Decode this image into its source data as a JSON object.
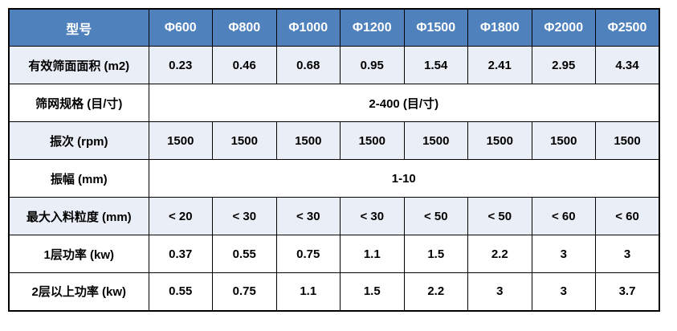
{
  "table": {
    "header": {
      "corner_label": "型号",
      "models": [
        "Φ600",
        "Φ800",
        "Φ1000",
        "Φ1200",
        "Φ1500",
        "Φ1800",
        "Φ2000",
        "Φ2500"
      ]
    },
    "rows": [
      {
        "label": "有效筛面面积 (m2)",
        "type": "values",
        "shaded": true,
        "values": [
          "0.23",
          "0.46",
          "0.68",
          "0.95",
          "1.54",
          "2.41",
          "2.95",
          "4.34"
        ]
      },
      {
        "label": "筛网规格 (目/寸)",
        "type": "merged",
        "shaded": false,
        "value": "2-400 (目/寸)"
      },
      {
        "label": "振次 (rpm)",
        "type": "values",
        "shaded": true,
        "values": [
          "1500",
          "1500",
          "1500",
          "1500",
          "1500",
          "1500",
          "1500",
          "1500"
        ]
      },
      {
        "label": "振幅 (mm)",
        "type": "merged",
        "shaded": false,
        "value": "1-10"
      },
      {
        "label": "最大入料粒度 (mm)",
        "type": "values",
        "shaded": true,
        "values": [
          "< 20",
          "< 30",
          "< 30",
          "< 30",
          "< 50",
          "< 50",
          "< 60",
          "< 60"
        ]
      },
      {
        "label": "1层功率 (kw)",
        "type": "values",
        "shaded": false,
        "values": [
          "0.37",
          "0.55",
          "0.75",
          "1.1",
          "1.5",
          "2.2",
          "3",
          "3"
        ]
      },
      {
        "label": "2层以上功率 (kw)",
        "type": "values",
        "shaded": false,
        "values": [
          "0.55",
          "0.75",
          "1.1",
          "1.5",
          "2.2",
          "3",
          "3",
          "3.7"
        ]
      }
    ],
    "colors": {
      "header_bg": "#4f81bd",
      "header_text": "#ffffff",
      "shaded_bg": "#eaeef6",
      "white_bg": "#ffffff",
      "border": "#000000",
      "text": "#000000"
    }
  }
}
